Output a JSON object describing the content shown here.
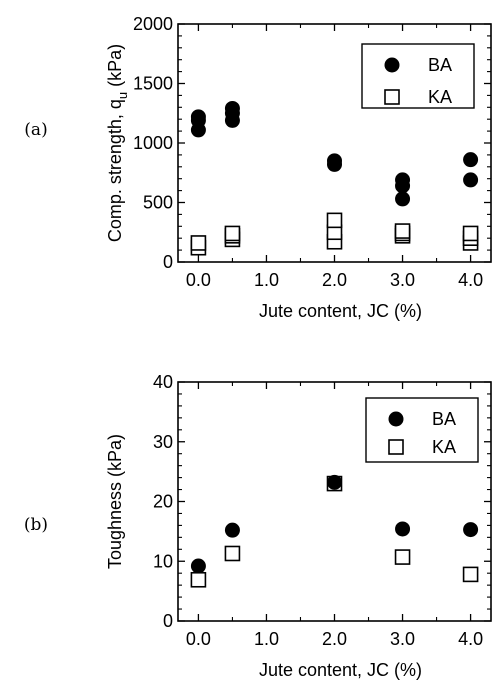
{
  "chart_data": [
    {
      "type": "scatter",
      "panel_label": "(a)",
      "title": "",
      "xlabel": "Jute content, JC (%)",
      "ylabel": "Comp. strength, q",
      "ylabel_sub": "u",
      "ylabel_unit": " (kPa)",
      "xlim": [
        -0.3,
        4.3
      ],
      "ylim": [
        0,
        2000
      ],
      "xticks": [
        0.0,
        1.0,
        2.0,
        3.0,
        4.0
      ],
      "xtick_labels": [
        "0.0",
        "1.0",
        "2.0",
        "3.0",
        "4.0"
      ],
      "yticks": [
        0,
        500,
        1000,
        1500,
        2000
      ],
      "ytick_labels": [
        "0",
        "500",
        "1000",
        "1500",
        "2000"
      ],
      "legend_position": "top-right",
      "series": [
        {
          "name": "BA",
          "marker": "filled-circle",
          "x": [
            0,
            0,
            0,
            0.5,
            0.5,
            0.5,
            2,
            2,
            3,
            3,
            3,
            4,
            4
          ],
          "y": [
            1110,
            1190,
            1220,
            1190,
            1250,
            1290,
            820,
            850,
            530,
            640,
            690,
            690,
            860
          ]
        },
        {
          "name": "KA",
          "marker": "open-square",
          "x": [
            0,
            0,
            0.5,
            0.5,
            0.5,
            2,
            2,
            2,
            3,
            3,
            3,
            4,
            4,
            4
          ],
          "y": [
            120,
            160,
            190,
            220,
            240,
            170,
            250,
            350,
            220,
            240,
            260,
            160,
            200,
            240
          ]
        }
      ]
    },
    {
      "type": "scatter",
      "panel_label": "(b)",
      "title": "",
      "xlabel": "Jute content, JC (%)",
      "ylabel": "Toughness (kPa)",
      "xlim": [
        -0.3,
        4.3
      ],
      "ylim": [
        0,
        40
      ],
      "xticks": [
        0.0,
        1.0,
        2.0,
        3.0,
        4.0
      ],
      "xtick_labels": [
        "0.0",
        "1.0",
        "2.0",
        "3.0",
        "4.0"
      ],
      "yticks": [
        0,
        10,
        20,
        30,
        40
      ],
      "ytick_labels": [
        "0",
        "10",
        "20",
        "30",
        "40"
      ],
      "legend_position": "top-right",
      "series": [
        {
          "name": "BA",
          "marker": "filled-circle",
          "x": [
            0,
            0.5,
            2,
            3,
            4
          ],
          "y": [
            9.2,
            15.2,
            23.2,
            15.4,
            15.3
          ]
        },
        {
          "name": "KA",
          "marker": "open-square",
          "x": [
            0,
            0.5,
            2,
            3,
            4
          ],
          "y": [
            6.9,
            11.3,
            23.0,
            10.7,
            7.8
          ]
        }
      ]
    }
  ]
}
